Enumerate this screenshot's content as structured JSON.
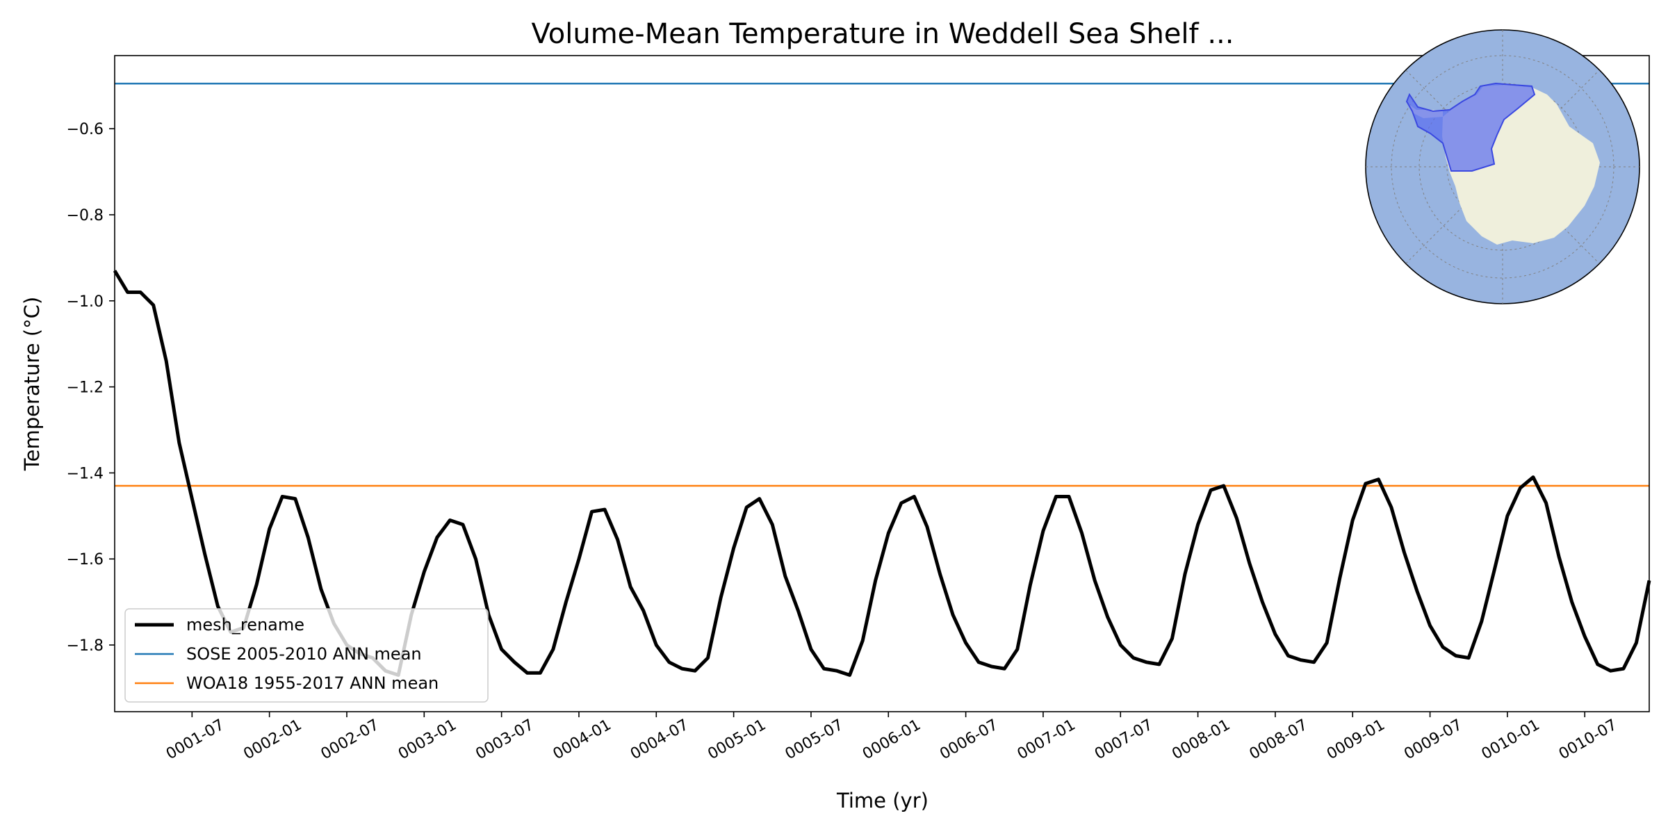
{
  "chart_data": {
    "type": "line",
    "title": "Volume-Mean Temperature in Weddell Sea Shelf ...",
    "xlabel": "Time (yr)",
    "ylabel": "Temperature (°C)",
    "x_ticks": [
      "0001-07",
      "0002-01",
      "0002-07",
      "0003-01",
      "0003-07",
      "0004-01",
      "0004-07",
      "0005-01",
      "0005-07",
      "0006-01",
      "0006-07",
      "0007-01",
      "0007-07",
      "0008-01",
      "0008-07",
      "0009-01",
      "0009-07",
      "0010-01",
      "0010-07"
    ],
    "y_ticks": [
      -0.6,
      -0.8,
      -1.0,
      -1.2,
      -1.4,
      -1.6,
      -1.8
    ],
    "y_tick_labels": [
      "−0.6",
      "−0.8",
      "−1.0",
      "−1.2",
      "−1.4",
      "−1.6",
      "−1.8"
    ],
    "xlim_months": [
      1,
      120
    ],
    "ylim": [
      -1.955,
      -0.43
    ],
    "legend_placement": "lower-left",
    "grid": false,
    "series": [
      {
        "name": "mesh_rename",
        "color": "#000000",
        "x_start": "0001-01",
        "x_step": "1 month",
        "values": [
          -0.93,
          -0.98,
          -0.98,
          -1.01,
          -1.14,
          -1.33,
          -1.46,
          -1.59,
          -1.71,
          -1.77,
          -1.76,
          -1.66,
          -1.53,
          -1.455,
          -1.46,
          -1.55,
          -1.67,
          -1.75,
          -1.8,
          -1.82,
          -1.83,
          -1.86,
          -1.87,
          -1.73,
          -1.63,
          -1.55,
          -1.51,
          -1.52,
          -1.6,
          -1.73,
          -1.81,
          -1.84,
          -1.865,
          -1.865,
          -1.81,
          -1.7,
          -1.6,
          -1.49,
          -1.485,
          -1.555,
          -1.665,
          -1.72,
          -1.8,
          -1.84,
          -1.855,
          -1.86,
          -1.83,
          -1.69,
          -1.575,
          -1.48,
          -1.46,
          -1.52,
          -1.64,
          -1.72,
          -1.81,
          -1.855,
          -1.86,
          -1.87,
          -1.79,
          -1.65,
          -1.54,
          -1.47,
          -1.455,
          -1.525,
          -1.635,
          -1.73,
          -1.795,
          -1.84,
          -1.85,
          -1.855,
          -1.81,
          -1.66,
          -1.535,
          -1.455,
          -1.455,
          -1.54,
          -1.65,
          -1.735,
          -1.8,
          -1.83,
          -1.84,
          -1.845,
          -1.785,
          -1.635,
          -1.52,
          -1.44,
          -1.43,
          -1.505,
          -1.61,
          -1.7,
          -1.775,
          -1.825,
          -1.835,
          -1.84,
          -1.795,
          -1.645,
          -1.51,
          -1.425,
          -1.415,
          -1.48,
          -1.585,
          -1.675,
          -1.755,
          -1.805,
          -1.825,
          -1.83,
          -1.745,
          -1.625,
          -1.5,
          -1.435,
          -1.41,
          -1.47,
          -1.595,
          -1.7,
          -1.78,
          -1.845,
          -1.86,
          -1.855,
          -1.795,
          -1.65
        ]
      },
      {
        "name": "SOSE 2005-2010 ANN mean",
        "color": "#1f77b4",
        "value": -0.495
      },
      {
        "name": "WOA18 1955-2017 ANN mean",
        "color": "#ff7f0e",
        "value": -1.43
      }
    ],
    "inset_map": {
      "ocean_color": "#98b4e0",
      "land_color": "#efefdc",
      "region_color": "#5a6cf0"
    }
  }
}
